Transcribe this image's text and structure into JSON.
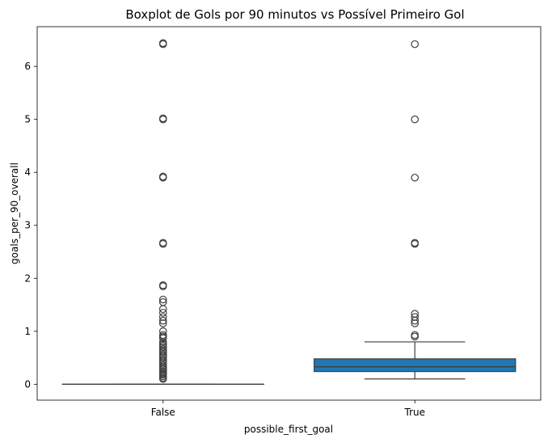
{
  "chart_data": {
    "type": "boxplot",
    "title": "Boxplot de Gols por 90 minutos vs Possível Primeiro Gol",
    "xlabel": "possible_first_goal",
    "ylabel": "goals_per_90_overall",
    "categories": [
      "False",
      "True"
    ],
    "y_ticks": [
      "0",
      "1",
      "2",
      "3",
      "4",
      "5",
      "6"
    ],
    "ylim": [
      -0.3,
      6.75
    ],
    "grid": false,
    "box_color": "#1f77b4",
    "boxes": [
      {
        "category": "False",
        "whisker_low": 0.0,
        "q1": 0.0,
        "median": 0.0,
        "q3": 0.0,
        "whisker_high": 0.0,
        "outliers": [
          0.1,
          0.12,
          0.15,
          0.18,
          0.2,
          0.22,
          0.25,
          0.28,
          0.3,
          0.33,
          0.36,
          0.4,
          0.43,
          0.46,
          0.5,
          0.53,
          0.56,
          0.6,
          0.63,
          0.66,
          0.7,
          0.73,
          0.76,
          0.8,
          0.87,
          0.9,
          0.93,
          1.0,
          1.15,
          1.2,
          1.27,
          1.35,
          1.42,
          1.55,
          1.6,
          1.85,
          1.87,
          2.65,
          2.67,
          3.9,
          3.92,
          5.0,
          5.02,
          6.42,
          6.44
        ]
      },
      {
        "category": "True",
        "whisker_low": 0.1,
        "q1": 0.24,
        "median": 0.33,
        "q3": 0.48,
        "whisker_high": 0.8,
        "outliers": [
          0.9,
          0.93,
          1.15,
          1.2,
          1.27,
          1.33,
          2.65,
          2.67,
          3.9,
          5.0,
          6.42
        ]
      }
    ]
  }
}
